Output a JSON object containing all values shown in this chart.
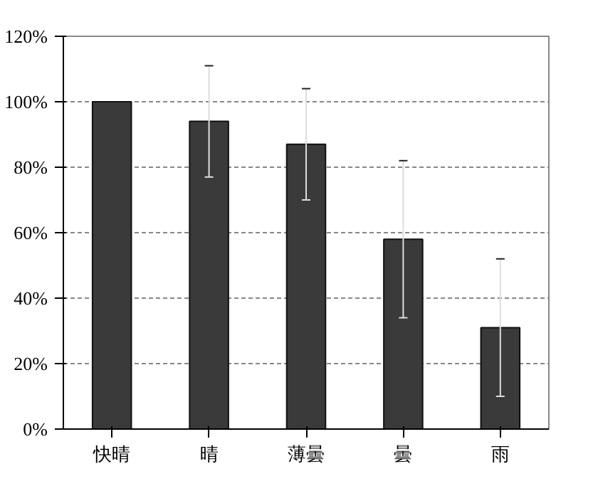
{
  "chart_data": {
    "type": "bar",
    "categories": [
      "快晴",
      "晴",
      "薄曇",
      "曇",
      "雨"
    ],
    "values": [
      100,
      94,
      87,
      58,
      31
    ],
    "errors": [
      null,
      17,
      17,
      24,
      21
    ],
    "color": "#3a3a3a",
    "ylim": [
      0,
      120
    ],
    "yticks": [
      {
        "value": 0,
        "label": "0%"
      },
      {
        "value": 20,
        "label": "20%"
      },
      {
        "value": 40,
        "label": "40%"
      },
      {
        "value": 60,
        "label": "60%"
      },
      {
        "value": 80,
        "label": "80%"
      },
      {
        "value": 100,
        "label": "100%"
      },
      {
        "value": 120,
        "label": "120%"
      }
    ],
    "grid": "y"
  }
}
